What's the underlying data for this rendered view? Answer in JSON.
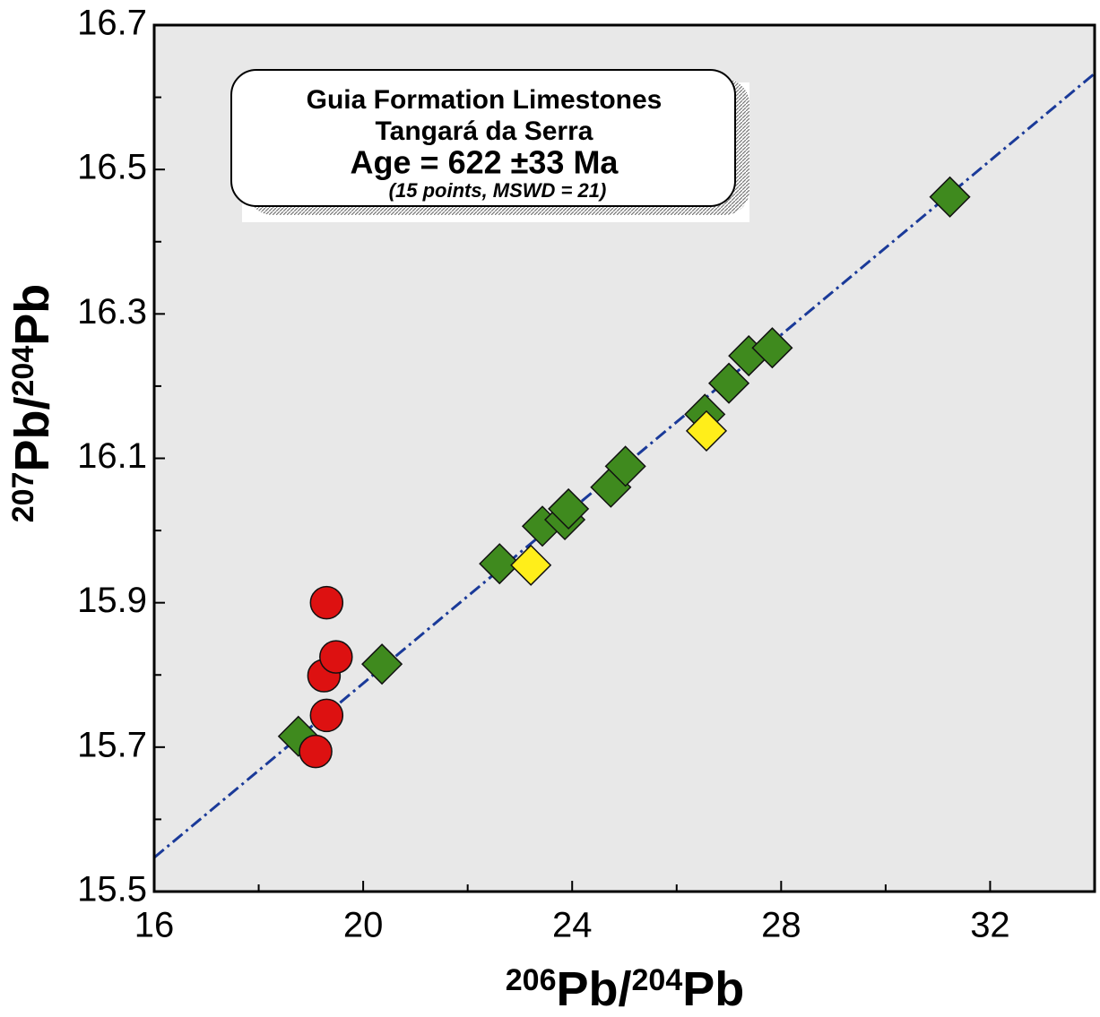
{
  "chart_data": {
    "type": "scatter",
    "xlabel_parts": [
      "206",
      "Pb/",
      "204",
      "Pb"
    ],
    "ylabel_parts": [
      "207",
      "Pb/",
      "204",
      "Pb"
    ],
    "annotation": [
      "Guia Formation Limestones",
      "Tangará da Serra",
      "Age = 622 ±33 Ma",
      "(15 points, MSWD = 21)"
    ],
    "xlim": [
      16,
      34
    ],
    "ylim": [
      15.5,
      16.7
    ],
    "xticks": [
      16,
      20,
      24,
      28,
      32
    ],
    "yticks": [
      15.5,
      15.7,
      15.9,
      16.1,
      16.3,
      16.5,
      16.7
    ],
    "xminorticks": [
      18,
      22,
      26,
      30
    ],
    "yminorticks": [
      15.6,
      15.8,
      16.0,
      16.2,
      16.4,
      16.6
    ],
    "background": "#e8e8e8",
    "series": [
      {
        "marker": "diamond",
        "color": "#3f8a1e",
        "x": [
          18.76,
          20.36,
          22.61,
          23.43,
          23.86,
          23.93,
          24.74,
          25.02,
          26.54,
          27.0,
          27.38,
          27.83,
          31.23
        ],
        "values": [
          15.715,
          15.815,
          15.954,
          16.006,
          16.015,
          16.03,
          16.06,
          16.089,
          16.161,
          16.204,
          16.242,
          16.253,
          16.462
        ]
      },
      {
        "marker": "diamond",
        "color": "#ffee1a",
        "x": [
          23.21,
          26.57
        ],
        "values": [
          15.952,
          16.138
        ]
      },
      {
        "marker": "circle",
        "color": "#dd1111",
        "x": [
          19.09,
          19.3,
          19.25,
          19.48,
          19.3
        ],
        "values": [
          15.694,
          15.744,
          15.799,
          15.825,
          15.9
        ]
      }
    ],
    "regression_line": {
      "color": "#1a3a99",
      "x": [
        16,
        34
      ],
      "values": [
        15.547,
        16.633
      ]
    }
  }
}
